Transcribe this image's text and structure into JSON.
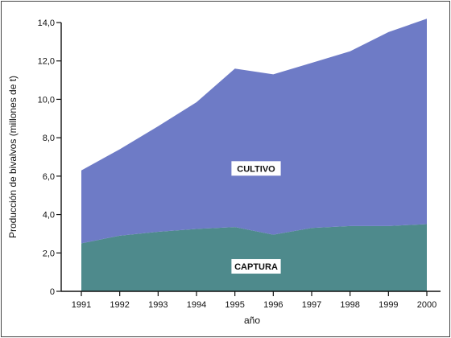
{
  "chart_data": {
    "type": "area",
    "stacked": true,
    "categories": [
      "1991",
      "1992",
      "1993",
      "1994",
      "1995",
      "1996",
      "1997",
      "1998",
      "1999",
      "2000"
    ],
    "series": [
      {
        "name": "CAPTURA",
        "values": [
          2.5,
          2.9,
          3.1,
          3.25,
          3.35,
          2.95,
          3.3,
          3.4,
          3.4,
          3.5
        ],
        "color": "#4e8a8c"
      },
      {
        "name": "CULTIVO",
        "values": [
          3.8,
          4.5,
          5.5,
          6.6,
          8.25,
          8.35,
          8.6,
          9.1,
          10.1,
          10.7
        ],
        "color": "#6e7bc6"
      }
    ],
    "totals": [
      6.3,
      7.4,
      8.6,
      9.85,
      11.6,
      11.3,
      11.9,
      12.5,
      13.5,
      14.2
    ],
    "xlabel": "año",
    "ylabel": "Producción de bivalvos (millones de t)",
    "ylim": [
      0,
      14
    ],
    "yticks": [
      "0",
      "2,0",
      "4,0",
      "6,0",
      "8,0",
      "10,0",
      "12,0",
      "14,0"
    ],
    "grid": false,
    "legend": "none"
  }
}
